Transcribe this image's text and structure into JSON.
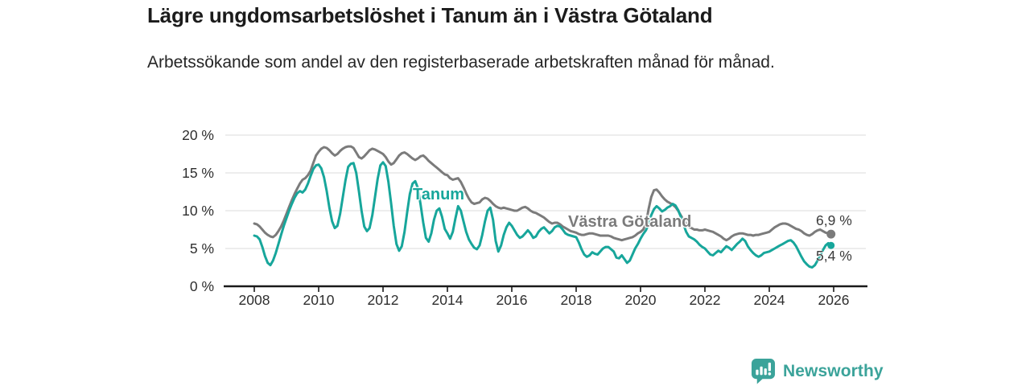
{
  "header": {
    "title": "Lägre ungdomsarbetslöshet i Tanum än i Västra Götaland",
    "subtitle": "Arbetssökande som andel av den registerbaserade arbetskraften månad för månad."
  },
  "chart_data": {
    "type": "line",
    "title": "Lägre ungdomsarbetslöshet i Tanum än i Västra Götaland",
    "xlabel": "",
    "ylabel": "",
    "x_start_year": 2008,
    "x_step": "monthly",
    "xlim": [
      2008,
      2027
    ],
    "ylim": [
      0,
      20
    ],
    "grid": "horizontal",
    "legend_position": "inline-labels",
    "y_ticks": [
      {
        "label": "20 %",
        "value": 20
      },
      {
        "label": "15 %",
        "value": 15
      },
      {
        "label": "10 %",
        "value": 10
      },
      {
        "label": "5 %",
        "value": 5
      },
      {
        "label": "0 %",
        "value": 0
      }
    ],
    "x_ticks": [
      {
        "label": "2008",
        "year": 2008
      },
      {
        "label": "2010",
        "year": 2010
      },
      {
        "label": "2012",
        "year": 2012
      },
      {
        "label": "2014",
        "year": 2014
      },
      {
        "label": "2016",
        "year": 2016
      },
      {
        "label": "2018",
        "year": 2018
      },
      {
        "label": "2020",
        "year": 2020
      },
      {
        "label": "2022",
        "year": 2022
      },
      {
        "label": "2024",
        "year": 2024
      },
      {
        "label": "2026",
        "year": 2026
      }
    ],
    "series": [
      {
        "name": "Västra Götaland",
        "color": "#7b7b7b",
        "end_dot_radius": 5.5,
        "values": [
          8.3,
          8.2,
          7.9,
          7.5,
          7.1,
          6.8,
          6.6,
          6.5,
          6.8,
          7.3,
          7.9,
          8.7,
          9.6,
          10.5,
          11.4,
          12.2,
          12.9,
          13.6,
          14.1,
          14.3,
          14.7,
          15.3,
          16.3,
          17.3,
          17.8,
          18.2,
          18.4,
          18.3,
          18.0,
          17.6,
          17.3,
          17.5,
          17.9,
          18.2,
          18.4,
          18.5,
          18.5,
          18.3,
          17.7,
          17.1,
          16.9,
          17.2,
          17.6,
          18.0,
          18.2,
          18.1,
          17.9,
          17.7,
          17.5,
          17.1,
          16.5,
          16.1,
          16.3,
          16.8,
          17.3,
          17.6,
          17.7,
          17.5,
          17.2,
          16.9,
          16.7,
          16.9,
          17.2,
          17.3,
          17.0,
          16.6,
          16.3,
          16.0,
          15.7,
          15.4,
          15.1,
          14.8,
          14.7,
          14.3,
          14.1,
          14.2,
          14.3,
          13.8,
          13.1,
          12.3,
          11.6,
          11.1,
          10.9,
          11.0,
          11.1,
          11.5,
          11.7,
          11.6,
          11.3,
          10.9,
          10.6,
          10.4,
          10.3,
          10.4,
          10.3,
          10.2,
          10.1,
          10.0,
          10.0,
          10.2,
          10.4,
          10.5,
          10.3,
          10.0,
          9.8,
          9.7,
          9.5,
          9.3,
          9.1,
          8.8,
          8.5,
          8.3,
          8.4,
          8.4,
          8.2,
          7.9,
          7.7,
          7.5,
          7.3,
          7.2,
          7.1,
          6.9,
          6.8,
          6.8,
          6.9,
          7.0,
          7.0,
          6.9,
          6.8,
          6.7,
          6.7,
          6.7,
          6.7,
          6.6,
          6.4,
          6.3,
          6.2,
          6.1,
          6.2,
          6.3,
          6.4,
          6.5,
          6.7,
          7.0,
          7.2,
          7.5,
          8.3,
          10.2,
          11.8,
          12.7,
          12.8,
          12.4,
          11.9,
          11.5,
          11.2,
          11.0,
          10.8,
          10.5,
          10.0,
          9.4,
          8.8,
          8.3,
          7.9,
          7.7,
          7.5,
          7.5,
          7.4,
          7.4,
          7.5,
          7.4,
          7.3,
          7.2,
          7.0,
          6.8,
          6.6,
          6.3,
          6.1,
          6.3,
          6.6,
          6.8,
          6.9,
          7.0,
          7.0,
          6.9,
          6.8,
          6.8,
          6.7,
          6.8,
          6.8,
          6.9,
          7.0,
          7.1,
          7.2,
          7.5,
          7.8,
          8.0,
          8.2,
          8.3,
          8.3,
          8.2,
          8.0,
          7.8,
          7.6,
          7.5,
          7.3,
          7.0,
          6.8,
          6.7,
          6.9,
          7.2,
          7.4,
          7.5,
          7.3,
          7.1,
          7.0,
          6.9
        ]
      },
      {
        "name": "Tanum",
        "color": "#17a69b",
        "end_dot_radius": 4.5,
        "values": [
          6.7,
          6.6,
          6.2,
          5.2,
          4.0,
          3.1,
          2.8,
          3.4,
          4.4,
          5.6,
          6.8,
          8.0,
          9.0,
          10.0,
          10.9,
          11.7,
          12.3,
          12.6,
          12.4,
          12.8,
          13.6,
          14.6,
          15.5,
          16.0,
          16.1,
          15.6,
          14.4,
          12.6,
          10.4,
          8.6,
          7.7,
          8.0,
          9.6,
          11.8,
          14.0,
          15.8,
          16.2,
          16.3,
          15.0,
          12.6,
          10.0,
          7.9,
          7.3,
          7.7,
          9.4,
          11.8,
          14.2,
          16.0,
          16.4,
          15.9,
          13.8,
          11.0,
          8.0,
          5.6,
          4.7,
          5.3,
          7.2,
          9.8,
          12.2,
          13.6,
          13.9,
          13.0,
          10.8,
          8.4,
          6.4,
          5.9,
          7.0,
          8.8,
          10.0,
          10.3,
          9.2,
          7.6,
          7.0,
          6.3,
          7.2,
          9.0,
          10.6,
          10.0,
          8.6,
          7.2,
          6.2,
          5.6,
          5.1,
          4.9,
          5.4,
          6.8,
          8.6,
          10.0,
          10.4,
          8.8,
          6.0,
          4.6,
          5.4,
          6.8,
          7.8,
          8.4,
          8.0,
          7.4,
          6.8,
          6.4,
          6.6,
          7.0,
          7.4,
          7.0,
          6.4,
          6.6,
          7.2,
          7.6,
          7.8,
          7.4,
          7.0,
          7.3,
          7.8,
          8.0,
          7.9,
          7.5,
          7.0,
          6.8,
          6.7,
          6.6,
          6.5,
          5.8,
          4.9,
          4.2,
          3.9,
          4.1,
          4.5,
          4.3,
          4.2,
          4.6,
          5.0,
          5.2,
          5.2,
          4.9,
          4.6,
          3.8,
          3.7,
          4.1,
          3.6,
          3.1,
          3.4,
          4.2,
          5.0,
          5.6,
          6.3,
          6.9,
          7.4,
          8.2,
          9.4,
          10.2,
          10.6,
          10.3,
          9.9,
          10.1,
          10.4,
          10.6,
          10.9,
          10.7,
          10.1,
          9.2,
          8.2,
          7.2,
          6.6,
          6.4,
          6.2,
          5.9,
          5.5,
          5.2,
          5.0,
          4.6,
          4.2,
          4.1,
          4.4,
          4.7,
          4.5,
          4.9,
          5.3,
          5.1,
          4.8,
          5.2,
          5.6,
          5.9,
          6.3,
          6.0,
          5.3,
          4.8,
          4.4,
          4.1,
          3.9,
          4.1,
          4.4,
          4.5,
          4.6,
          4.8,
          5.0,
          5.2,
          5.4,
          5.6,
          5.8,
          6.0,
          6.1,
          5.8,
          5.3,
          4.6,
          3.9,
          3.3,
          2.9,
          2.6,
          2.5,
          2.8,
          3.4,
          4.1,
          4.8,
          5.4,
          5.7,
          5.4
        ]
      }
    ],
    "end_labels": [
      {
        "text": "6,9 %",
        "series": "Västra Götaland"
      },
      {
        "text": "5,4 %",
        "series": "Tanum"
      }
    ],
    "colors": {
      "grid": "#e2e2e2",
      "axis": "#1a1a1a",
      "tick_text": "#2e2e2e"
    }
  },
  "footer": {
    "brand": "Newsworthy",
    "brand_color": "#3ba39a",
    "logo_icon": "bar-chart-speech-bubble-icon"
  }
}
